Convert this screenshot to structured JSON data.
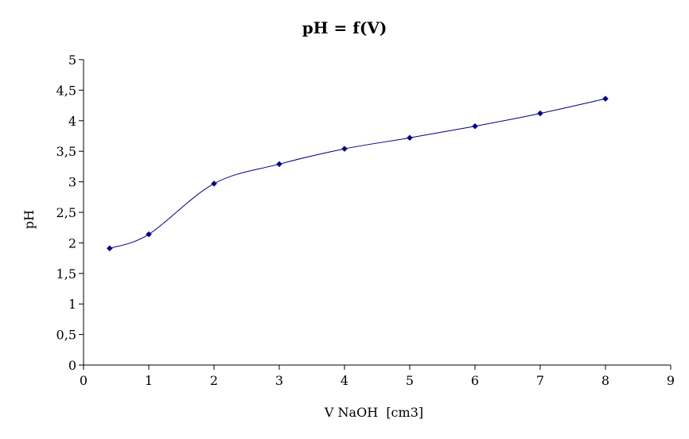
{
  "chart_data": {
    "type": "line",
    "title": "pH = f(V)",
    "xlabel": "V NaOH  [cm3]",
    "ylabel": "pH",
    "xlim": [
      0,
      9
    ],
    "ylim": [
      0,
      5
    ],
    "x_ticks": [
      "0",
      "1",
      "2",
      "3",
      "4",
      "5",
      "6",
      "7",
      "8",
      "9"
    ],
    "y_ticks": [
      "0",
      "0,5",
      "1",
      "1,5",
      "2",
      "2,5",
      "3",
      "3,5",
      "4",
      "4,5",
      "5"
    ],
    "grid": false,
    "legend": "none",
    "smooth": true,
    "series": [
      {
        "x": [
          0.4,
          1,
          2,
          3,
          4,
          5,
          6,
          7,
          8
        ],
        "y": [
          1.91,
          2.14,
          2.97,
          3.29,
          3.54,
          3.72,
          3.91,
          4.12,
          4.36
        ],
        "color": "#000080",
        "marker": "diamond"
      }
    ]
  }
}
